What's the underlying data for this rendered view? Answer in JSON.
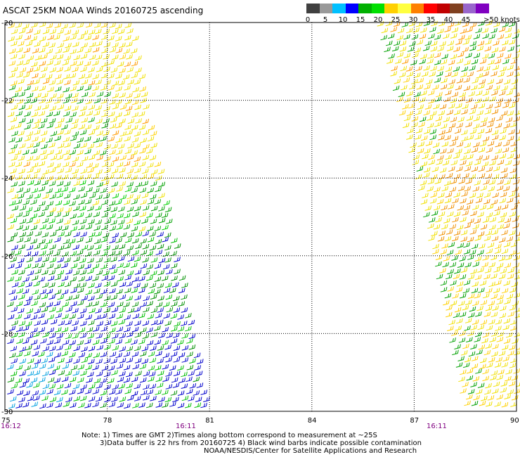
{
  "title": "ASCAT 25KM NOAA Winds 20160725 ascending",
  "legend": {
    "colors": [
      "#404040",
      "#999999",
      "#00c0ff",
      "#0000ff",
      "#00b000",
      "#00e000",
      "#ffd000",
      "#ffff40",
      "#ff8000",
      "#ff0000",
      "#c00000",
      "#804020",
      "#9966cc",
      "#8000c0"
    ],
    "labels": [
      "0",
      "5",
      "10",
      "15",
      "20",
      "25",
      "30",
      "35",
      "40",
      "45",
      ">50 knots"
    ]
  },
  "axes": {
    "lat_labels": [
      "-20",
      "-22",
      "-24",
      "-26",
      "-28",
      "-30"
    ],
    "lon_labels": [
      "75",
      "78",
      "81",
      "84",
      "87",
      "90"
    ]
  },
  "times": [
    "16:12",
    "16:11",
    "16:11"
  ],
  "notes": {
    "line1": "Note: 1) Times are GMT 2)Times along bottom correspond to measurement at ~25S",
    "line2": "3)Data buffer is 22 hrs from 20160725 4) Black wind barbs indicate possible contamination",
    "line3": "NOAA/NESDIS/Center for Satellite Applications and Research"
  },
  "swaths": [
    {
      "name": "left-swath"
    },
    {
      "name": "right-swath"
    }
  ]
}
